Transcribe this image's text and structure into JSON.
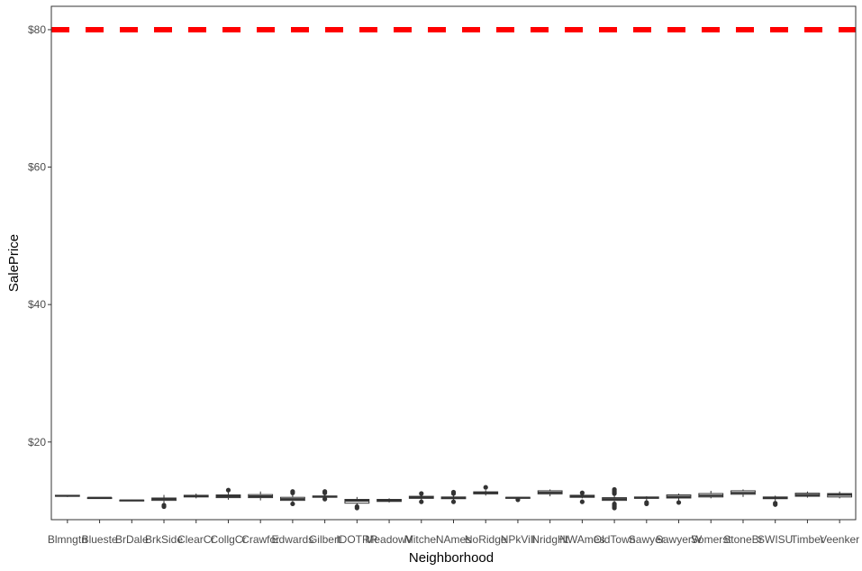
{
  "chart_data": {
    "type": "boxplot",
    "xlabel": "Neighborhood",
    "ylabel": "SalePrice",
    "ylim": [
      8.7,
      83.4
    ],
    "y_ticks": [
      20,
      40,
      60,
      80
    ],
    "y_tick_labels": [
      "$20",
      "$40",
      "$60",
      "$80"
    ],
    "grid": false,
    "reference_line": {
      "y": 80,
      "color": "#ff0000",
      "style": "dashed"
    },
    "categories": [
      "Blmngtn",
      "Blueste",
      "BrDale",
      "BrkSide",
      "ClearCr",
      "CollgCr",
      "Crawfor",
      "Edwards",
      "Gilbert",
      "IDOTRR",
      "MeadowV",
      "Mitchel",
      "NAmes",
      "NoRidge",
      "NPkVill",
      "NridgHt",
      "NWAmes",
      "OldTown",
      "Sawyer",
      "SawyerW",
      "Somerst",
      "StoneBr",
      "SWISU",
      "Timber",
      "Veenker"
    ],
    "boxes": [
      {
        "min": 12.0,
        "q1": 12.1,
        "median": 12.15,
        "q3": 12.25,
        "max": 12.3,
        "outliers": []
      },
      {
        "min": 11.85,
        "q1": 11.85,
        "median": 11.9,
        "q3": 11.9,
        "max": 11.95,
        "outliers": []
      },
      {
        "min": 11.4,
        "q1": 11.45,
        "median": 11.5,
        "q3": 11.55,
        "max": 11.6,
        "outliers": []
      },
      {
        "min": 11.1,
        "q1": 11.5,
        "median": 11.7,
        "q3": 11.85,
        "max": 12.3,
        "outliers": [
          10.6,
          10.8
        ]
      },
      {
        "min": 11.8,
        "q1": 12.0,
        "median": 12.1,
        "q3": 12.25,
        "max": 12.5,
        "outliers": []
      },
      {
        "min": 11.6,
        "q1": 11.9,
        "median": 12.1,
        "q3": 12.3,
        "max": 12.8,
        "outliers": [
          13.0
        ]
      },
      {
        "min": 11.5,
        "q1": 11.9,
        "median": 12.1,
        "q3": 12.35,
        "max": 12.8,
        "outliers": []
      },
      {
        "min": 11.2,
        "q1": 11.5,
        "median": 11.7,
        "q3": 11.95,
        "max": 12.3,
        "outliers": [
          11.0,
          12.6,
          12.8
        ]
      },
      {
        "min": 11.8,
        "q1": 11.95,
        "median": 12.05,
        "q3": 12.15,
        "max": 12.4,
        "outliers": [
          11.7,
          12.6,
          12.8
        ]
      },
      {
        "min": 10.8,
        "q1": 11.1,
        "median": 11.45,
        "q3": 11.65,
        "max": 12.0,
        "outliers": [
          10.4,
          10.6
        ]
      },
      {
        "min": 11.2,
        "q1": 11.35,
        "median": 11.5,
        "q3": 11.65,
        "max": 11.8,
        "outliers": []
      },
      {
        "min": 11.5,
        "q1": 11.8,
        "median": 11.95,
        "q3": 12.1,
        "max": 12.3,
        "outliers": [
          11.3,
          12.5
        ]
      },
      {
        "min": 11.5,
        "q1": 11.75,
        "median": 11.9,
        "q3": 12.0,
        "max": 12.2,
        "outliers": [
          11.3,
          12.5,
          12.7
        ]
      },
      {
        "min": 12.2,
        "q1": 12.45,
        "median": 12.6,
        "q3": 12.75,
        "max": 13.0,
        "outliers": [
          13.4
        ]
      },
      {
        "min": 11.7,
        "q1": 11.8,
        "median": 11.9,
        "q3": 11.95,
        "max": 12.0,
        "outliers": [
          11.6
        ]
      },
      {
        "min": 12.1,
        "q1": 12.45,
        "median": 12.65,
        "q3": 12.9,
        "max": 13.1,
        "outliers": []
      },
      {
        "min": 11.8,
        "q1": 11.95,
        "median": 12.1,
        "q3": 12.25,
        "max": 12.4,
        "outliers": [
          11.3,
          12.6
        ]
      },
      {
        "min": 11.1,
        "q1": 11.5,
        "median": 11.7,
        "q3": 11.9,
        "max": 12.2,
        "outliers": [
          10.4,
          10.6,
          10.8,
          11.0,
          12.5,
          12.7,
          12.9,
          13.1
        ]
      },
      {
        "min": 11.4,
        "q1": 11.8,
        "median": 11.9,
        "q3": 12.0,
        "max": 12.1,
        "outliers": [
          11.0,
          11.2
        ]
      },
      {
        "min": 11.5,
        "q1": 11.85,
        "median": 12.05,
        "q3": 12.3,
        "max": 12.5,
        "outliers": [
          11.2
        ]
      },
      {
        "min": 11.8,
        "q1": 12.0,
        "median": 12.2,
        "q3": 12.5,
        "max": 12.9,
        "outliers": []
      },
      {
        "min": 12.0,
        "q1": 12.4,
        "median": 12.6,
        "q3": 12.9,
        "max": 13.1,
        "outliers": []
      },
      {
        "min": 11.4,
        "q1": 11.75,
        "median": 11.9,
        "q3": 12.0,
        "max": 12.2,
        "outliers": [
          10.9,
          11.1
        ]
      },
      {
        "min": 11.9,
        "q1": 12.1,
        "median": 12.3,
        "q3": 12.55,
        "max": 12.8,
        "outliers": []
      },
      {
        "min": 11.8,
        "q1": 12.0,
        "median": 12.3,
        "q3": 12.5,
        "max": 12.8,
        "outliers": []
      }
    ]
  }
}
